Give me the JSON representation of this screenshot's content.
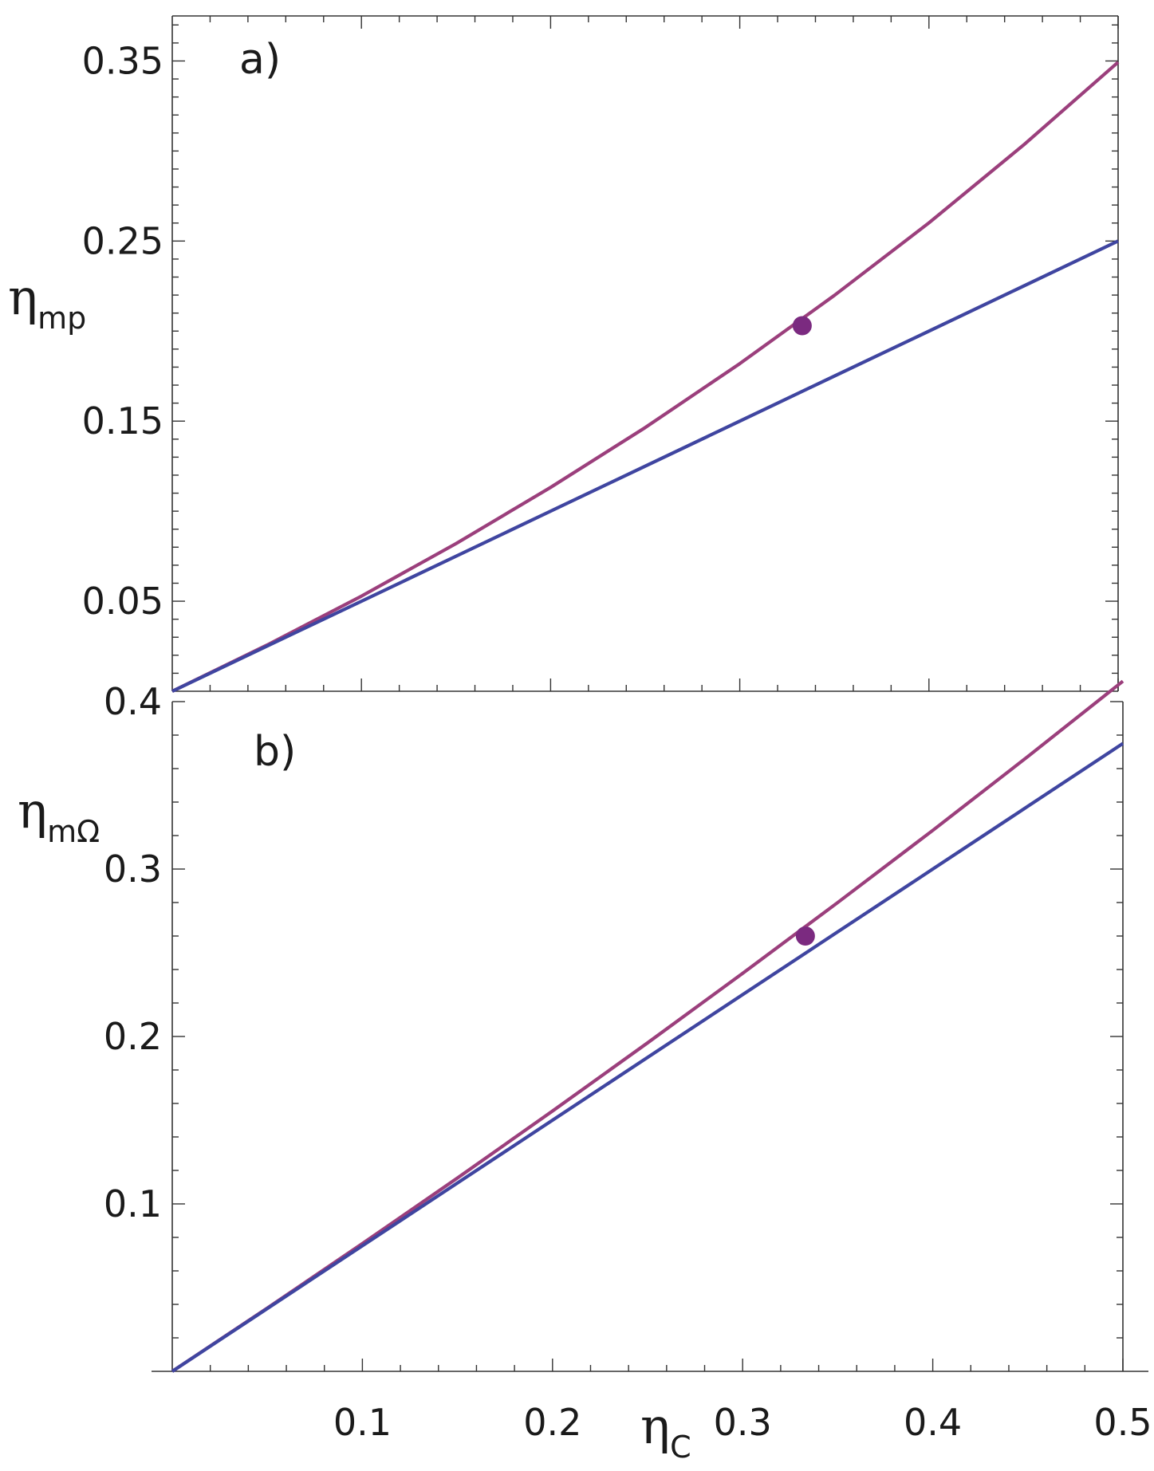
{
  "chart_data": [
    {
      "type": "line",
      "panel_label": "a)",
      "ylabel": {
        "symbol": "η",
        "sub": "mp"
      },
      "xlim": [
        0,
        0.5
      ],
      "ylim": [
        0,
        0.375
      ],
      "y_ticks": [
        0.05,
        0.15,
        0.25,
        0.35
      ],
      "y_tick_labels": [
        "0.05",
        "0.15",
        "0.25",
        "0.35"
      ],
      "series": [
        {
          "color": "#9b3f7c",
          "x": [
            0,
            0.05,
            0.1,
            0.15,
            0.2,
            0.25,
            0.3,
            0.35,
            0.4,
            0.45,
            0.5
          ],
          "y": [
            0,
            0.0256,
            0.0528,
            0.082,
            0.1132,
            0.1464,
            0.1819,
            0.2198,
            0.2601,
            0.3033,
            0.3493
          ]
        },
        {
          "color": "#3f45a0",
          "x": [
            0,
            0.05,
            0.1,
            0.15,
            0.2,
            0.25,
            0.3,
            0.35,
            0.4,
            0.45,
            0.5
          ],
          "y": [
            0,
            0.025,
            0.05,
            0.075,
            0.1,
            0.125,
            0.15,
            0.175,
            0.2,
            0.225,
            0.25
          ]
        }
      ],
      "points": [
        {
          "x": 0.333,
          "y": 0.203,
          "color": "#7b2a80"
        }
      ]
    },
    {
      "type": "line",
      "panel_label": "b)",
      "ylabel": {
        "symbol": "η",
        "sub": "mΩ"
      },
      "xlabel": {
        "symbol": "η",
        "sub": "C"
      },
      "xlim": [
        0,
        0.5
      ],
      "ylim": [
        0,
        0.4
      ],
      "x_ticks": [
        0.1,
        0.2,
        0.3,
        0.4,
        0.5
      ],
      "x_tick_labels": [
        "0.1",
        "0.2",
        "0.3",
        "0.4",
        "0.5"
      ],
      "y_ticks": [
        0.1,
        0.2,
        0.3,
        0.4
      ],
      "y_tick_labels": [
        "0.1",
        "0.2",
        "0.3",
        "0.4"
      ],
      "series": [
        {
          "color": "#9b3f7c",
          "x": [
            0,
            0.05,
            0.1,
            0.15,
            0.2,
            0.25,
            0.3,
            0.35,
            0.4,
            0.45,
            0.5
          ],
          "y": [
            0,
            0.0378,
            0.0763,
            0.1155,
            0.1555,
            0.1962,
            0.2377,
            0.28,
            0.3231,
            0.3672,
            0.4122
          ]
        },
        {
          "color": "#3f45a0",
          "x": [
            0,
            0.05,
            0.1,
            0.15,
            0.2,
            0.25,
            0.3,
            0.35,
            0.4,
            0.45,
            0.5
          ],
          "y": [
            0,
            0.0375,
            0.075,
            0.1125,
            0.15,
            0.1875,
            0.225,
            0.2625,
            0.3,
            0.3375,
            0.375
          ]
        }
      ],
      "points": [
        {
          "x": 0.333,
          "y": 0.26,
          "color": "#7b2a80"
        }
      ]
    }
  ]
}
